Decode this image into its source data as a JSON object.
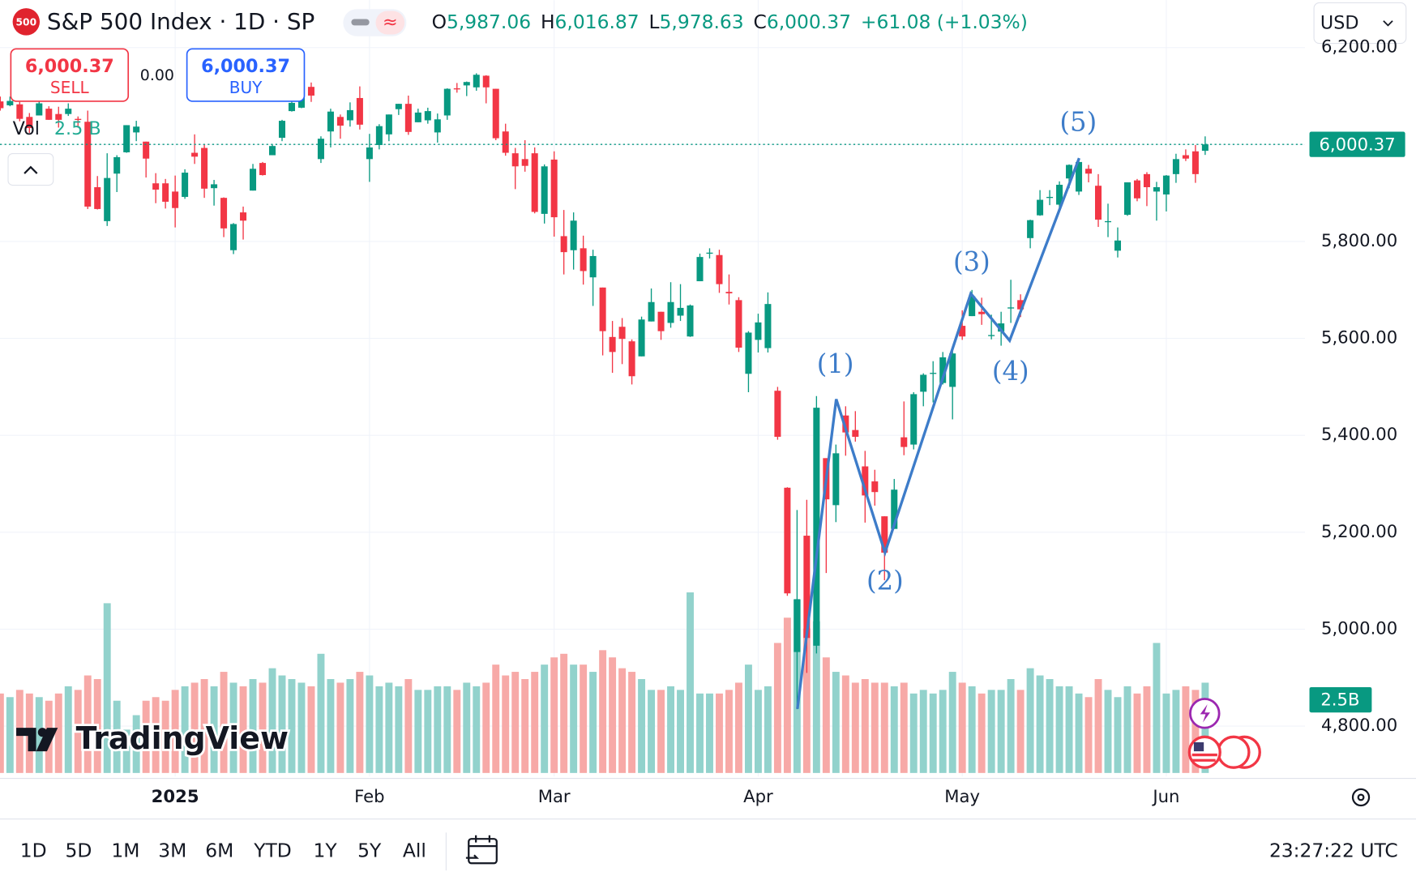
{
  "header": {
    "symbol_icon": "500",
    "title": "S&P 500 Index · 1D · SP",
    "ohlc": [
      {
        "label": "O",
        "value": "5,987.06"
      },
      {
        "label": "H",
        "value": "6,016.87"
      },
      {
        "label": "L",
        "value": "5,978.63"
      },
      {
        "label": "C",
        "value": "6,000.37"
      }
    ],
    "change": "+61.08 (+1.03%)",
    "currency": "USD"
  },
  "trade": {
    "sell_price": "6,000.37",
    "sell": "SELL",
    "spread": "0.00",
    "buy_price": "6,000.37",
    "buy": "BUY"
  },
  "volume_legend": {
    "label": "Vol",
    "value": "2.5 B"
  },
  "logo": "TradingView",
  "chart_data": {
    "type": "candlestick",
    "categories": [
      null,
      null,
      null,
      null,
      null,
      null,
      null,
      null,
      null,
      null,
      null,
      null,
      null,
      null,
      null,
      null,
      null,
      null,
      "2025",
      null,
      null,
      null,
      null,
      null,
      null,
      null,
      null,
      null,
      null,
      null,
      null,
      null,
      null,
      null,
      null,
      null,
      null,
      null,
      "Feb",
      null,
      null,
      null,
      null,
      null,
      null,
      null,
      null,
      null,
      null,
      null,
      null,
      null,
      null,
      null,
      null,
      null,
      null,
      "Mar",
      null,
      null,
      null,
      null,
      null,
      null,
      null,
      null,
      null,
      null,
      null,
      null,
      null,
      null,
      null,
      null,
      null,
      null,
      null,
      null,
      "Apr",
      null,
      null,
      null,
      null,
      null,
      null,
      null,
      null,
      null,
      null,
      null,
      null,
      null,
      null,
      null,
      null,
      null,
      null,
      null,
      null,
      "May",
      null,
      null,
      null,
      null,
      null,
      null,
      null,
      null,
      null,
      null,
      null,
      null,
      null,
      null,
      null,
      null,
      null,
      null,
      null,
      null,
      "Jun",
      null,
      null,
      null,
      null
    ],
    "open": [
      6089,
      6081,
      6083,
      6057,
      6060,
      6074,
      6063,
      6063,
      6053,
      6047,
      5912,
      5842,
      5940,
      5984,
      6025,
      6006,
      5920,
      5920,
      5903,
      5892,
      5983,
      5993,
      5910,
      5890,
      5782,
      5860,
      5905,
      5962,
      5978,
      6014,
      6069,
      6076,
      6119,
      5970,
      6027,
      6057,
      6050,
      6096,
      5970,
      5999,
      6021,
      6073,
      6084,
      6046,
      6050,
      6025,
      6060,
      6116,
      6122,
      6118,
      6142,
      6115,
      6027,
      5982,
      5970,
      5982,
      5857,
      5969,
      5811,
      5782,
      5786,
      5726,
      5705,
      5603,
      5624,
      5594,
      5563,
      5635,
      5655,
      5632,
      5647,
      5604,
      5718,
      5776,
      5772,
      5696,
      5679,
      5527,
      5597,
      5580,
      5492,
      5292,
      4953,
      5193,
      4966,
      5353,
      5256,
      5441,
      5411,
      5336,
      5305,
      5233,
      5207,
      5396,
      5381,
      5490,
      5529,
      5508,
      5500,
      5626,
      5646,
      5655,
      5605,
      5614,
      5663,
      5679,
      5807,
      5854,
      5891,
      5876,
      5930,
      5903,
      5950,
      5915,
      5841,
      5781,
      5855,
      5926,
      5939,
      5903,
      5897,
      5939,
      5978,
      5986,
      5987.06
    ],
    "high": [
      6099,
      6099,
      6088,
      6065,
      6092,
      6079,
      6078,
      6085,
      6058,
      6070,
      5935,
      5982,
      5978,
      6040,
      6049,
      6006,
      5941,
      5929,
      5936,
      5949,
      6021,
      6000,
      5927,
      5891,
      5838,
      5872,
      5960,
      5964,
      6001,
      6051,
      6101,
      6119,
      6128,
      6017,
      6074,
      6062,
      6087,
      6120,
      6022,
      6042,
      6062,
      6084,
      6101,
      6074,
      6076,
      6064,
      6116,
      6127,
      6130,
      6147,
      6143,
      6115,
      6043,
      5993,
      6009,
      5994,
      5959,
      5986,
      5865,
      5860,
      5812,
      5783,
      5705,
      5636,
      5642,
      5598,
      5645,
      5703,
      5655,
      5716,
      5712,
      5670,
      5775,
      5786,
      5783,
      5732,
      5685,
      5615,
      5651,
      5695,
      5500,
      5293,
      5246,
      5267,
      5481,
      5353,
      5381,
      5460,
      5450,
      5368,
      5329,
      5233,
      5310,
      5470,
      5489,
      5528,
      5553,
      5572,
      5581,
      5658,
      5700,
      5684,
      5649,
      5655,
      5721,
      5691,
      5845,
      5906,
      5906,
      5924,
      5959,
      5969,
      5958,
      5939,
      5878,
      5829,
      5922,
      5929,
      5943,
      5923,
      5937,
      5981,
      5990,
      5999,
      6016.87
    ],
    "low": [
      6070,
      6079,
      6048,
      6024,
      6060,
      6051,
      6035,
      6059,
      6035,
      5867,
      5866,
      5832,
      5902,
      5983,
      6007,
      5932,
      5879,
      5868,
      5829,
      5888,
      5960,
      5890,
      5874,
      5809,
      5774,
      5804,
      5905,
      5936,
      5978,
      6007,
      6068,
      6075,
      6088,
      5962,
      5994,
      6012,
      6037,
      6031,
      5923,
      5990,
      6007,
      6061,
      6020,
      6046,
      6043,
      6004,
      6051,
      6107,
      6100,
      6111,
      6085,
      6009,
      5977,
      5908,
      5944,
      5858,
      5837,
      5810,
      5732,
      5742,
      5711,
      5667,
      5565,
      5529,
      5547,
      5505,
      5563,
      5635,
      5597,
      5622,
      5636,
      5603,
      5718,
      5765,
      5694,
      5670,
      5572,
      5489,
      5571,
      5571,
      5391,
      5069,
      4835,
      4910,
      4950,
      5116,
      5221,
      5358,
      5387,
      5220,
      5255,
      5101,
      5207,
      5359,
      5371,
      5460,
      5468,
      5505,
      5433,
      5597,
      5646,
      5628,
      5598,
      5585,
      5632,
      5644,
      5786,
      5853,
      5875,
      5869,
      5910,
      5896,
      5922,
      5830,
      5809,
      5767,
      5853,
      5883,
      5873,
      5843,
      5862,
      5921,
      5966,
      5921,
      5978.63
    ],
    "close": [
      6075,
      6090,
      6053,
      6034,
      6085,
      6051,
      6051,
      6074,
      6051,
      5872,
      5867,
      5931,
      5974,
      6040,
      6037,
      5971,
      5907,
      5882,
      5869,
      5942,
      5975,
      5909,
      5918,
      5827,
      5836,
      5843,
      5950,
      5937,
      5997,
      6049,
      6086,
      6119,
      6101,
      6012,
      6068,
      6039,
      6071,
      6041,
      5994,
      6038,
      6062,
      6084,
      6026,
      6066,
      6069,
      6052,
      6115,
      6115,
      6129,
      6144,
      6118,
      6013,
      5983,
      5955,
      5956,
      5861,
      5955,
      5850,
      5778,
      5843,
      5739,
      5770,
      5615,
      5572,
      5599,
      5522,
      5639,
      5675,
      5615,
      5675,
      5663,
      5668,
      5768,
      5777,
      5712,
      5693,
      5581,
      5612,
      5633,
      5671,
      5397,
      5074,
      5062,
      4982,
      5457,
      5268,
      5363,
      5406,
      5397,
      5276,
      5283,
      5158,
      5288,
      5376,
      5485,
      5525,
      5529,
      5561,
      5569,
      5604,
      5687,
      5650,
      5607,
      5631,
      5664,
      5660,
      5844,
      5886,
      5892,
      5917,
      5958,
      5964,
      5940,
      5845,
      5842,
      5802,
      5922,
      5889,
      5912,
      5912,
      5936,
      5970,
      5971,
      5939,
      6000.37
    ],
    "volume": [
      2.2,
      2.1,
      2.3,
      2.2,
      2.1,
      2.0,
      2.2,
      2.4,
      2.3,
      2.7,
      2.6,
      4.7,
      2.0,
      1.2,
      1.6,
      2.0,
      2.1,
      2.0,
      2.3,
      2.4,
      2.5,
      2.6,
      2.4,
      2.8,
      2.5,
      2.4,
      2.6,
      2.5,
      2.9,
      2.7,
      2.6,
      2.5,
      2.4,
      3.3,
      2.6,
      2.5,
      2.6,
      2.8,
      2.7,
      2.4,
      2.5,
      2.4,
      2.6,
      2.3,
      2.3,
      2.4,
      2.4,
      2.3,
      2.5,
      2.4,
      2.5,
      3.0,
      2.7,
      2.8,
      2.6,
      2.8,
      3.0,
      3.2,
      3.3,
      3.0,
      3.0,
      2.8,
      3.4,
      3.2,
      2.9,
      2.8,
      2.6,
      2.3,
      2.3,
      2.4,
      2.3,
      5.0,
      2.2,
      2.2,
      2.2,
      2.3,
      2.5,
      3.0,
      2.3,
      2.4,
      3.6,
      4.3,
      4.8,
      4.0,
      4.2,
      3.2,
      2.8,
      2.7,
      2.5,
      2.6,
      2.5,
      2.5,
      2.4,
      2.5,
      2.2,
      2.3,
      2.2,
      2.3,
      2.8,
      2.5,
      2.4,
      2.2,
      2.3,
      2.3,
      2.6,
      2.3,
      2.9,
      2.7,
      2.6,
      2.4,
      2.4,
      2.2,
      2.1,
      2.6,
      2.3,
      2.1,
      2.4,
      2.2,
      2.4,
      3.6,
      2.2,
      2.3,
      2.4,
      2.3,
      2.5
    ],
    "up_color": "#089981",
    "down_color": "#f23645",
    "volume_up_color": "#92d2cc",
    "volume_down_color": "#f7a9a7",
    "ylim": [
      4696,
      6298
    ],
    "yticks": [
      {
        "value": 4800,
        "label": "4,800.00"
      },
      {
        "value": 5000,
        "label": "5,000.00"
      },
      {
        "value": 5200,
        "label": "5,200.00"
      },
      {
        "value": 5400,
        "label": "5,400.00"
      },
      {
        "value": 5600,
        "label": "5,600.00"
      },
      {
        "value": 5800,
        "label": "5,800.00"
      },
      {
        "value": 6000,
        "label": "6,000.00"
      },
      {
        "value": 6200,
        "label": "6,200.00"
      }
    ],
    "grid": true,
    "last_price": 6000.37,
    "last_price_label": "6,000.37",
    "volume_label": "2.5B",
    "annotations": [
      "(1)",
      "(2)",
      "(3)",
      "(4)",
      "(5)"
    ],
    "annotation_color": "#3d7cc9"
  },
  "footer": {
    "ranges": [
      "1D",
      "5D",
      "1M",
      "3M",
      "6M",
      "YTD",
      "1Y",
      "5Y",
      "All"
    ],
    "time": "23:27:22 UTC"
  }
}
